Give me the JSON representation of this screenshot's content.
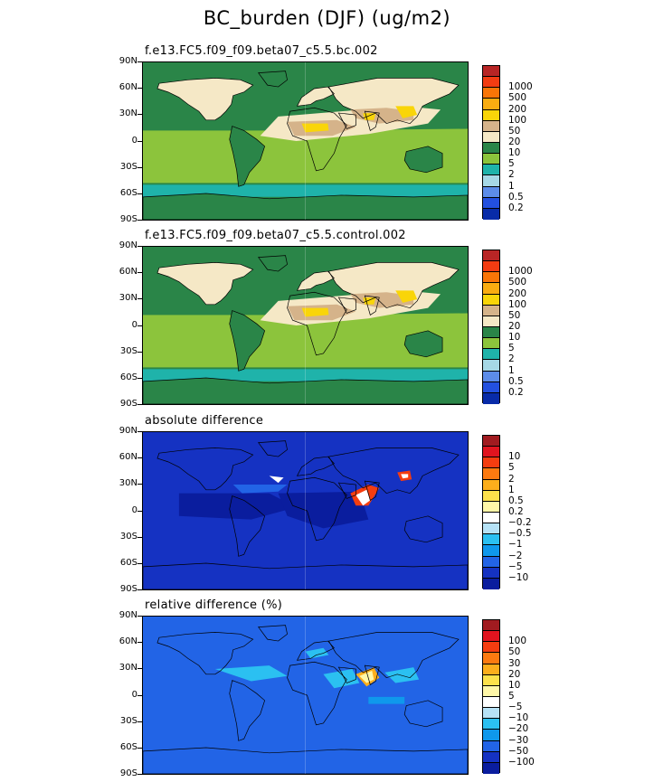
{
  "title": "BC_burden (DJF) (ug/m2)",
  "lat_labels": [
    "90N",
    "60N",
    "30N",
    "0",
    "30S",
    "60S",
    "90S"
  ],
  "colors": {
    "abs": [
      "#082ba8",
      "#2350df",
      "#5c8ce9",
      "#a6d8e6",
      "#1fb3aa",
      "#8cc43c",
      "#2a8548",
      "#f5e8c6",
      "#d5b38a",
      "#f9d509",
      "#f9ac11",
      "#f97507",
      "#f33c12",
      "#b82525"
    ],
    "diff": [
      "#0a1d9e",
      "#1532c2",
      "#2264e6",
      "#0f98ec",
      "#2bc0f1",
      "#b6e2f6",
      "#ffffff",
      "#fff7a8",
      "#fde14b",
      "#fcae1c",
      "#fc7a10",
      "#f53d10",
      "#e1141f",
      "#a11b20"
    ]
  },
  "chart_data": [
    {
      "type": "heatmap",
      "panel_title": "f.e13.FC5.f09_f09.beta07_c5.5.bc.002",
      "ylim": [
        "90S",
        "90N"
      ],
      "levels": [
        "0.2",
        "0.5",
        "1",
        "2",
        "5",
        "10",
        "20",
        "50",
        "100",
        "200",
        "500",
        "1000"
      ],
      "colormap": "abs"
    },
    {
      "type": "heatmap",
      "panel_title": "f.e13.FC5.f09_f09.beta07_c5.5.control.002",
      "ylim": [
        "90S",
        "90N"
      ],
      "levels": [
        "0.2",
        "0.5",
        "1",
        "2",
        "5",
        "10",
        "20",
        "50",
        "100",
        "200",
        "500",
        "1000"
      ],
      "colormap": "abs"
    },
    {
      "type": "heatmap",
      "panel_title": "absolute difference",
      "ylim": [
        "90S",
        "90N"
      ],
      "levels": [
        "−10",
        "−5",
        "−2",
        "−1",
        "−0.5",
        "−0.2",
        "0.2",
        "0.5",
        "1",
        "2",
        "5",
        "10"
      ],
      "colormap": "diff"
    },
    {
      "type": "heatmap",
      "panel_title": "relative difference (%)",
      "ylim": [
        "90S",
        "90N"
      ],
      "levels": [
        "−100",
        "−50",
        "−30",
        "−20",
        "−10",
        "−5",
        "5",
        "10",
        "20",
        "30",
        "50",
        "100"
      ],
      "colormap": "diff"
    }
  ]
}
